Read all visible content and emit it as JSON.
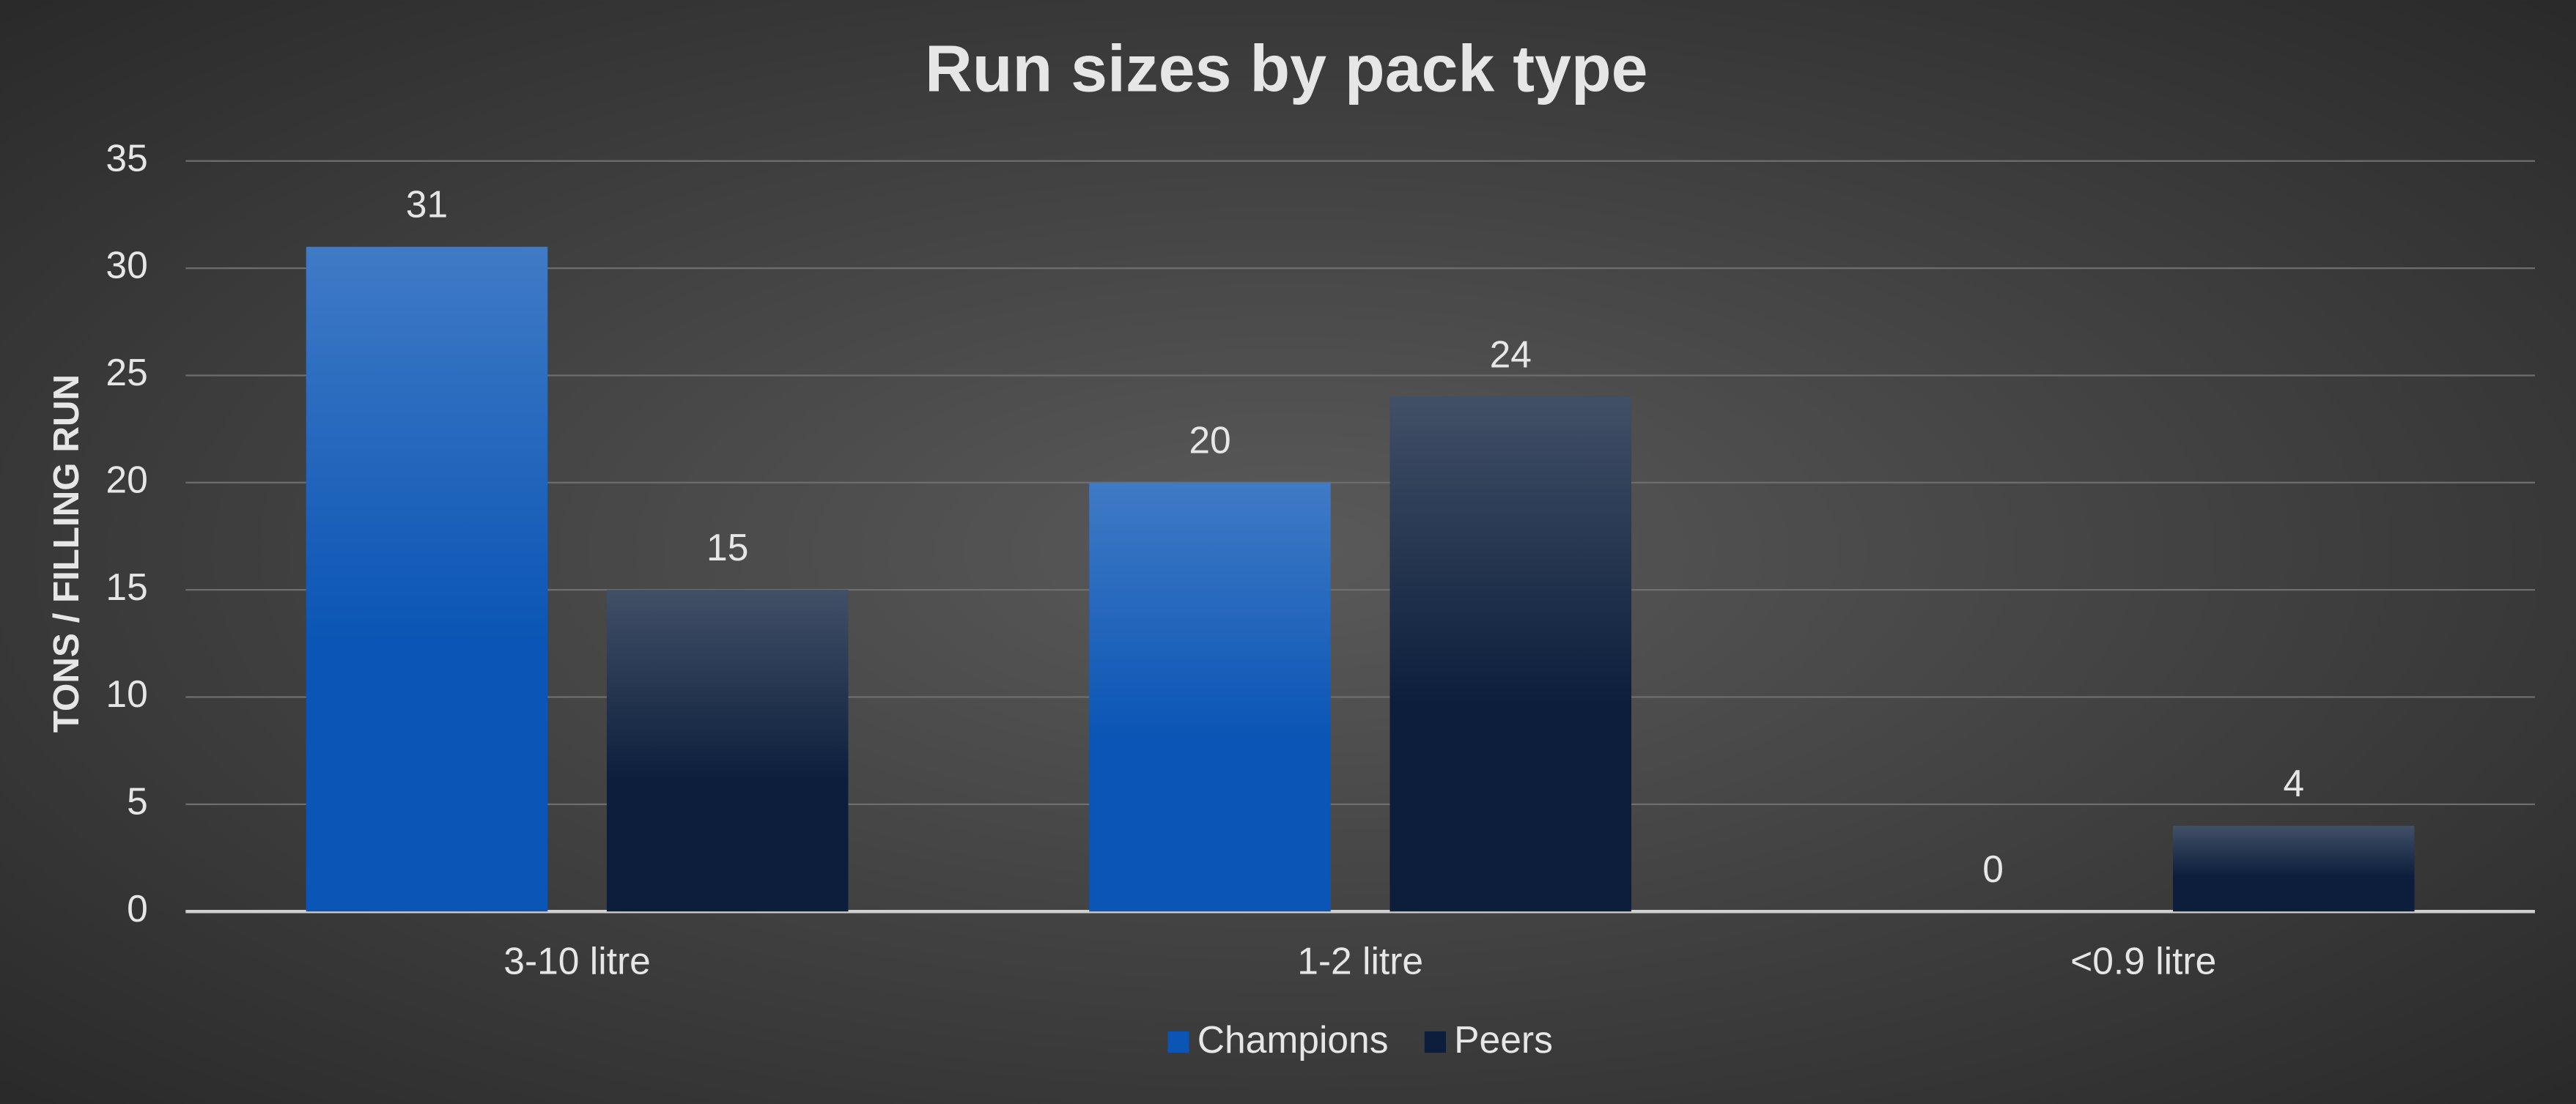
{
  "chart_data": {
    "type": "bar",
    "title": "Run sizes by pack type",
    "y_label": "TONS / FILLING RUN",
    "categories": [
      "3-10 litre",
      "1-2 litre",
      "<0.9 litre"
    ],
    "series": [
      {
        "name": "Champions",
        "color": "#0a55b5",
        "values": [
          31,
          20,
          0
        ]
      },
      {
        "name": "Peers",
        "color": "#0c1e3c",
        "values": [
          15,
          24,
          4
        ]
      }
    ],
    "ylim": [
      0,
      35
    ],
    "yticks": [
      0,
      5,
      10,
      15,
      20,
      25,
      30,
      35
    ],
    "grid": true,
    "legend": "bottom"
  }
}
